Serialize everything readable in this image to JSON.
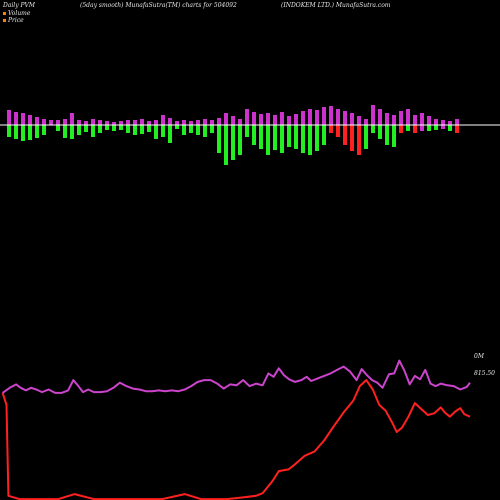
{
  "header": {
    "left": "Daily PVM",
    "center": "(5day smooth) MunafaSutra(TM) charts for 504092",
    "right": "(INDOKEM LTD.) MunafaSutra.com"
  },
  "legend": [
    {
      "label": "Volume",
      "color": "#ff8000"
    },
    {
      "label": "Price",
      "color": "#ff8000"
    }
  ],
  "colors": {
    "background": "#000000",
    "price_line": "#ff2020",
    "smooth_line": "#cc44cc",
    "bar_magenta": "#cc33cc",
    "bar_green": "#22ee22",
    "bar_red": "#ff2020",
    "baseline": "#ffffff"
  },
  "chart_data": {
    "type": "line",
    "volume_label": "0M",
    "price_label": "815.50",
    "volume_bars": [
      {
        "up": 15,
        "down": 12,
        "color": "green"
      },
      {
        "up": 13,
        "down": 14,
        "color": "green"
      },
      {
        "up": 12,
        "down": 16,
        "color": "green"
      },
      {
        "up": 10,
        "down": 15,
        "color": "green"
      },
      {
        "up": 8,
        "down": 13,
        "color": "green"
      },
      {
        "up": 6,
        "down": 10,
        "color": "green"
      },
      {
        "up": 5,
        "down": 0,
        "color": "magenta"
      },
      {
        "up": 5,
        "down": 6,
        "color": "green"
      },
      {
        "up": 6,
        "down": 13,
        "color": "green"
      },
      {
        "up": 12,
        "down": 14,
        "color": "green"
      },
      {
        "up": 5,
        "down": 10,
        "color": "green"
      },
      {
        "up": 4,
        "down": 7,
        "color": "green"
      },
      {
        "up": 6,
        "down": 12,
        "color": "green"
      },
      {
        "up": 5,
        "down": 8,
        "color": "green"
      },
      {
        "up": 4,
        "down": 5,
        "color": "green"
      },
      {
        "up": 3,
        "down": 6,
        "color": "green"
      },
      {
        "up": 4,
        "down": 5,
        "color": "green"
      },
      {
        "up": 5,
        "down": 8,
        "color": "green"
      },
      {
        "up": 5,
        "down": 10,
        "color": "green"
      },
      {
        "up": 6,
        "down": 9,
        "color": "green"
      },
      {
        "up": 4,
        "down": 7,
        "color": "green"
      },
      {
        "up": 5,
        "down": 14,
        "color": "green"
      },
      {
        "up": 10,
        "down": 12,
        "color": "green"
      },
      {
        "up": 7,
        "down": 18,
        "color": "green"
      },
      {
        "up": 4,
        "down": 4,
        "color": "green"
      },
      {
        "up": 5,
        "down": 10,
        "color": "green"
      },
      {
        "up": 4,
        "down": 8,
        "color": "green"
      },
      {
        "up": 5,
        "down": 10,
        "color": "green"
      },
      {
        "up": 6,
        "down": 12,
        "color": "green"
      },
      {
        "up": 5,
        "down": 8,
        "color": "green"
      },
      {
        "up": 7,
        "down": 28,
        "color": "green"
      },
      {
        "up": 12,
        "down": 40,
        "color": "green"
      },
      {
        "up": 9,
        "down": 35,
        "color": "green"
      },
      {
        "up": 6,
        "down": 30,
        "color": "green"
      },
      {
        "up": 16,
        "down": 12,
        "color": "green"
      },
      {
        "up": 13,
        "down": 20,
        "color": "green"
      },
      {
        "up": 11,
        "down": 24,
        "color": "green"
      },
      {
        "up": 12,
        "down": 30,
        "color": "green"
      },
      {
        "up": 10,
        "down": 25,
        "color": "green"
      },
      {
        "up": 13,
        "down": 28,
        "color": "green"
      },
      {
        "up": 9,
        "down": 22,
        "color": "green"
      },
      {
        "up": 11,
        "down": 24,
        "color": "green"
      },
      {
        "up": 14,
        "down": 28,
        "color": "green"
      },
      {
        "up": 16,
        "down": 30,
        "color": "green"
      },
      {
        "up": 15,
        "down": 26,
        "color": "green"
      },
      {
        "up": 18,
        "down": 20,
        "color": "green"
      },
      {
        "up": 19,
        "down": 8,
        "color": "red"
      },
      {
        "up": 16,
        "down": 12,
        "color": "red"
      },
      {
        "up": 14,
        "down": 20,
        "color": "red"
      },
      {
        "up": 12,
        "down": 26,
        "color": "red"
      },
      {
        "up": 9,
        "down": 30,
        "color": "red"
      },
      {
        "up": 6,
        "down": 24,
        "color": "green"
      },
      {
        "up": 20,
        "down": 8,
        "color": "green"
      },
      {
        "up": 16,
        "down": 14,
        "color": "green"
      },
      {
        "up": 12,
        "down": 20,
        "color": "green"
      },
      {
        "up": 10,
        "down": 22,
        "color": "green"
      },
      {
        "up": 14,
        "down": 8,
        "color": "red"
      },
      {
        "up": 16,
        "down": 6,
        "color": "green"
      },
      {
        "up": 10,
        "down": 8,
        "color": "red"
      },
      {
        "up": 12,
        "down": 6,
        "color": "magenta"
      },
      {
        "up": 9,
        "down": 6,
        "color": "green"
      },
      {
        "up": 6,
        "down": 5,
        "color": "green"
      },
      {
        "up": 5,
        "down": 4,
        "color": "magenta"
      },
      {
        "up": 4,
        "down": 6,
        "color": "green"
      },
      {
        "up": 6,
        "down": 8,
        "color": "red"
      }
    ],
    "price_series": [
      {
        "x": 0.4,
        "y": 0.26
      },
      {
        "x": 1.0,
        "y": 0.12
      },
      {
        "x": 1.3,
        "y": -0.95
      },
      {
        "x": 3.0,
        "y": -0.99
      },
      {
        "x": 6.0,
        "y": -0.99
      },
      {
        "x": 9.0,
        "y": -0.99
      },
      {
        "x": 11.5,
        "y": -0.93
      },
      {
        "x": 14.5,
        "y": -0.99
      },
      {
        "x": 19.0,
        "y": -0.99
      },
      {
        "x": 25.0,
        "y": -0.99
      },
      {
        "x": 28.5,
        "y": -0.93
      },
      {
        "x": 31.0,
        "y": -0.99
      },
      {
        "x": 35.0,
        "y": -0.99
      },
      {
        "x": 37.5,
        "y": -0.97
      },
      {
        "x": 39.5,
        "y": -0.95
      },
      {
        "x": 40.5,
        "y": -0.92
      },
      {
        "x": 42.0,
        "y": -0.78
      },
      {
        "x": 43.0,
        "y": -0.66
      },
      {
        "x": 44.5,
        "y": -0.64
      },
      {
        "x": 45.5,
        "y": -0.58
      },
      {
        "x": 47.0,
        "y": -0.48
      },
      {
        "x": 48.5,
        "y": -0.43
      },
      {
        "x": 50.0,
        "y": -0.3
      },
      {
        "x": 51.5,
        "y": -0.13
      },
      {
        "x": 53.0,
        "y": 0.03
      },
      {
        "x": 54.5,
        "y": 0.17
      },
      {
        "x": 55.5,
        "y": 0.34
      },
      {
        "x": 56.5,
        "y": 0.41
      },
      {
        "x": 57.5,
        "y": 0.3
      },
      {
        "x": 58.5,
        "y": 0.12
      },
      {
        "x": 59.5,
        "y": 0.05
      },
      {
        "x": 60.5,
        "y": -0.09
      },
      {
        "x": 61.2,
        "y": -0.2
      },
      {
        "x": 62.0,
        "y": -0.15
      },
      {
        "x": 63.0,
        "y": -0.02
      },
      {
        "x": 64.0,
        "y": 0.14
      },
      {
        "x": 65.0,
        "y": 0.07
      },
      {
        "x": 66.0,
        "y": 0.0
      },
      {
        "x": 67.0,
        "y": 0.02
      },
      {
        "x": 68.0,
        "y": 0.09
      },
      {
        "x": 68.6,
        "y": 0.03
      },
      {
        "x": 69.4,
        "y": -0.02
      },
      {
        "x": 70.2,
        "y": 0.04
      },
      {
        "x": 71.0,
        "y": 0.08
      },
      {
        "x": 71.6,
        "y": 0.01
      },
      {
        "x": 72.5,
        "y": -0.02
      }
    ],
    "smooth_series": [
      {
        "x": 0.4,
        "y": 0.26
      },
      {
        "x": 1.5,
        "y": 0.32
      },
      {
        "x": 2.5,
        "y": 0.36
      },
      {
        "x": 3.2,
        "y": 0.32
      },
      {
        "x": 4.0,
        "y": 0.29
      },
      {
        "x": 4.8,
        "y": 0.32
      },
      {
        "x": 5.6,
        "y": 0.3
      },
      {
        "x": 6.5,
        "y": 0.27
      },
      {
        "x": 7.5,
        "y": 0.3
      },
      {
        "x": 8.5,
        "y": 0.26
      },
      {
        "x": 9.5,
        "y": 0.26
      },
      {
        "x": 10.5,
        "y": 0.29
      },
      {
        "x": 11.3,
        "y": 0.41
      },
      {
        "x": 12.0,
        "y": 0.35
      },
      {
        "x": 12.8,
        "y": 0.27
      },
      {
        "x": 13.6,
        "y": 0.3
      },
      {
        "x": 14.5,
        "y": 0.27
      },
      {
        "x": 15.5,
        "y": 0.27
      },
      {
        "x": 16.5,
        "y": 0.28
      },
      {
        "x": 17.5,
        "y": 0.32
      },
      {
        "x": 18.5,
        "y": 0.38
      },
      {
        "x": 19.5,
        "y": 0.34
      },
      {
        "x": 20.5,
        "y": 0.31
      },
      {
        "x": 21.5,
        "y": 0.3
      },
      {
        "x": 22.5,
        "y": 0.28
      },
      {
        "x": 23.5,
        "y": 0.28
      },
      {
        "x": 24.5,
        "y": 0.29
      },
      {
        "x": 25.5,
        "y": 0.28
      },
      {
        "x": 26.5,
        "y": 0.29
      },
      {
        "x": 27.5,
        "y": 0.28
      },
      {
        "x": 28.5,
        "y": 0.3
      },
      {
        "x": 29.5,
        "y": 0.34
      },
      {
        "x": 30.5,
        "y": 0.39
      },
      {
        "x": 31.5,
        "y": 0.41
      },
      {
        "x": 32.5,
        "y": 0.41
      },
      {
        "x": 33.5,
        "y": 0.37
      },
      {
        "x": 34.5,
        "y": 0.31
      },
      {
        "x": 35.5,
        "y": 0.36
      },
      {
        "x": 36.5,
        "y": 0.35
      },
      {
        "x": 37.5,
        "y": 0.41
      },
      {
        "x": 38.5,
        "y": 0.34
      },
      {
        "x": 39.5,
        "y": 0.37
      },
      {
        "x": 40.5,
        "y": 0.35
      },
      {
        "x": 41.4,
        "y": 0.49
      },
      {
        "x": 42.2,
        "y": 0.45
      },
      {
        "x": 43.0,
        "y": 0.55
      },
      {
        "x": 43.8,
        "y": 0.47
      },
      {
        "x": 44.6,
        "y": 0.42
      },
      {
        "x": 45.5,
        "y": 0.39
      },
      {
        "x": 46.5,
        "y": 0.41
      },
      {
        "x": 47.3,
        "y": 0.45
      },
      {
        "x": 48.0,
        "y": 0.4
      },
      {
        "x": 49.0,
        "y": 0.43
      },
      {
        "x": 50.0,
        "y": 0.46
      },
      {
        "x": 51.0,
        "y": 0.49
      },
      {
        "x": 52.0,
        "y": 0.53
      },
      {
        "x": 53.0,
        "y": 0.57
      },
      {
        "x": 54.0,
        "y": 0.51
      },
      {
        "x": 55.0,
        "y": 0.41
      },
      {
        "x": 55.8,
        "y": 0.54
      },
      {
        "x": 56.6,
        "y": 0.47
      },
      {
        "x": 57.4,
        "y": 0.41
      },
      {
        "x": 58.2,
        "y": 0.38
      },
      {
        "x": 59.0,
        "y": 0.32
      },
      {
        "x": 60.0,
        "y": 0.48
      },
      {
        "x": 60.8,
        "y": 0.49
      },
      {
        "x": 61.6,
        "y": 0.64
      },
      {
        "x": 62.4,
        "y": 0.52
      },
      {
        "x": 63.2,
        "y": 0.36
      },
      {
        "x": 64.0,
        "y": 0.46
      },
      {
        "x": 64.8,
        "y": 0.42
      },
      {
        "x": 65.6,
        "y": 0.53
      },
      {
        "x": 66.4,
        "y": 0.37
      },
      {
        "x": 67.2,
        "y": 0.34
      },
      {
        "x": 68.0,
        "y": 0.37
      },
      {
        "x": 69.0,
        "y": 0.35
      },
      {
        "x": 70.0,
        "y": 0.34
      },
      {
        "x": 71.0,
        "y": 0.3
      },
      {
        "x": 72.0,
        "y": 0.33
      },
      {
        "x": 72.5,
        "y": 0.38
      }
    ]
  }
}
